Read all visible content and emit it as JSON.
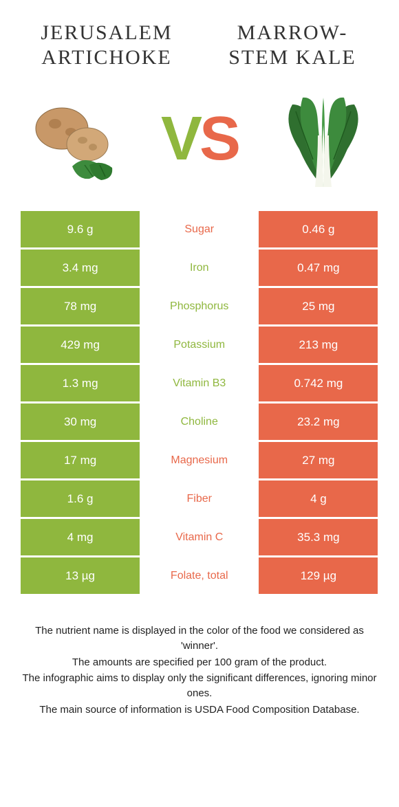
{
  "colors": {
    "left": "#8fb73e",
    "right": "#e8684a",
    "leftText": "#8fb73e",
    "rightText": "#e8684a"
  },
  "fonts": {
    "title_family": "Times New Roman, serif",
    "title_size_pt": 22,
    "cell_size_pt": 13,
    "nutrient_size_pt": 12,
    "footnote_size_pt": 11
  },
  "foods": {
    "left": {
      "name": "JERUSALEM ARTICHOKE",
      "icon": "jerusalem-artichoke-icon"
    },
    "right": {
      "name": "MARROW-STEM KALE",
      "icon": "kale-icon"
    }
  },
  "vs": {
    "label_v": "V",
    "label_s": "S"
  },
  "rows": [
    {
      "nutrient": "Sugar",
      "left": "9.6 g",
      "right": "0.46 g",
      "winner": "right"
    },
    {
      "nutrient": "Iron",
      "left": "3.4 mg",
      "right": "0.47 mg",
      "winner": "left"
    },
    {
      "nutrient": "Phosphorus",
      "left": "78 mg",
      "right": "25 mg",
      "winner": "left"
    },
    {
      "nutrient": "Potassium",
      "left": "429 mg",
      "right": "213 mg",
      "winner": "left"
    },
    {
      "nutrient": "Vitamin B3",
      "left": "1.3 mg",
      "right": "0.742 mg",
      "winner": "left"
    },
    {
      "nutrient": "Choline",
      "left": "30 mg",
      "right": "23.2 mg",
      "winner": "left"
    },
    {
      "nutrient": "Magnesium",
      "left": "17 mg",
      "right": "27 mg",
      "winner": "right"
    },
    {
      "nutrient": "Fiber",
      "left": "1.6 g",
      "right": "4 g",
      "winner": "right"
    },
    {
      "nutrient": "Vitamin C",
      "left": "4 mg",
      "right": "35.3 mg",
      "winner": "right"
    },
    {
      "nutrient": "Folate, total",
      "left": "13 µg",
      "right": "129 µg",
      "winner": "right"
    }
  ],
  "footnotes": [
    "The nutrient name is displayed in the color of the food we considered as 'winner'.",
    "The amounts are specified per 100 gram of the product.",
    "The infographic aims to display only the significant differences, ignoring minor ones.",
    "The main source of information is USDA Food Composition Database."
  ]
}
